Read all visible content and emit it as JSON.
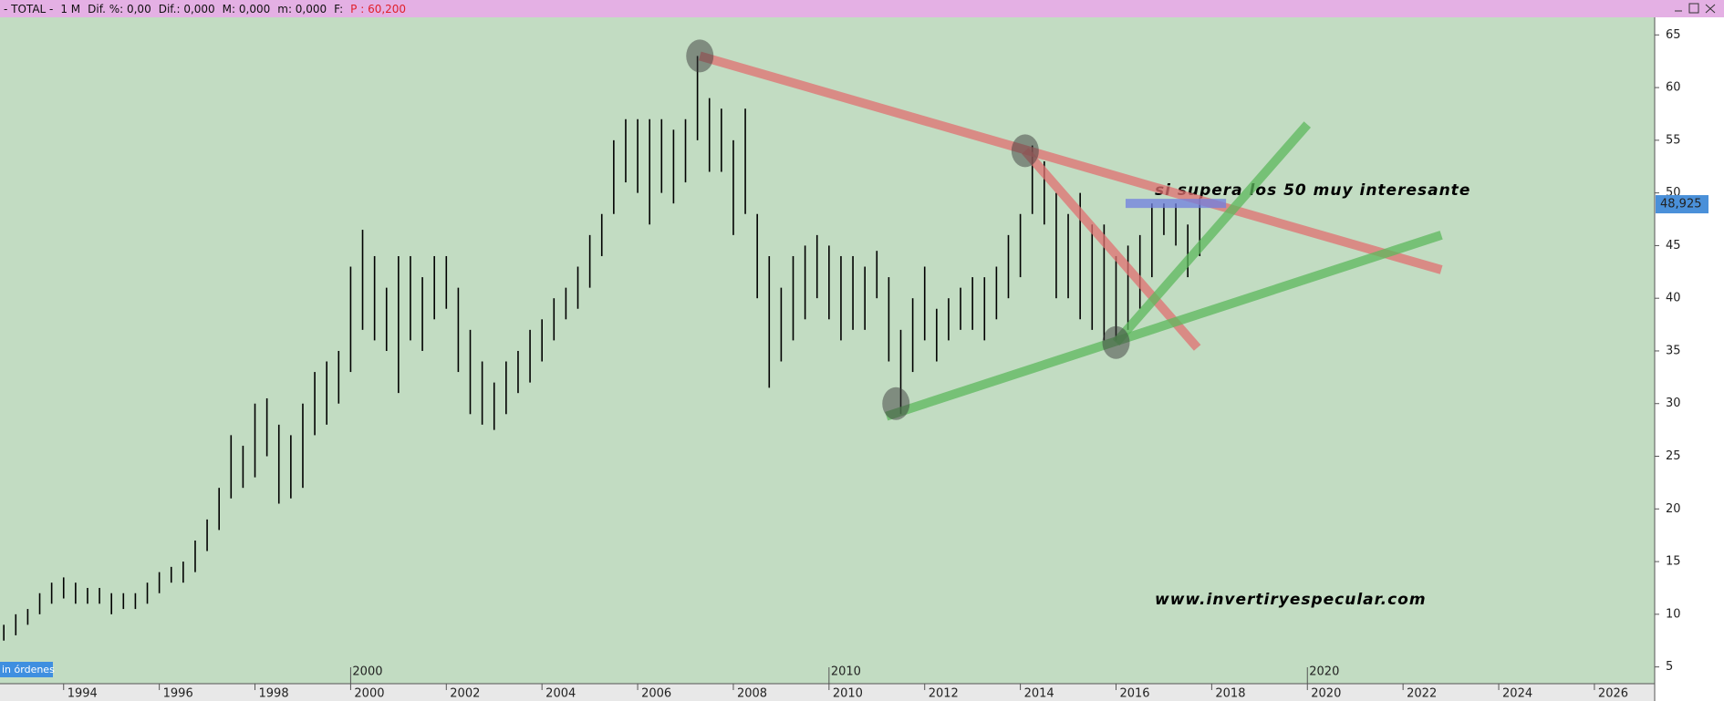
{
  "chart_data": {
    "type": "range-bar",
    "header": [
      "- TOTAL -",
      "1 M",
      "Dif. %: 0,00",
      "Dif.: 0,000",
      "M: 0,000",
      "m: 0,000",
      "F:"
    ],
    "price_field": "P : 60,200",
    "orders_label": "in órdenes",
    "annotation": "si supera los 50 muy interesante",
    "watermark": "www.invertiryespecular.com",
    "last_price": {
      "value": 48.925,
      "label": "48,925"
    },
    "bar_color": "#000000",
    "background": "#c2dcc2",
    "xlim": [
      1992.67,
      2027.26
    ],
    "ylim": [
      3.41,
      66.67
    ],
    "xticks": [
      1994,
      1996,
      1998,
      2000,
      2002,
      2004,
      2006,
      2008,
      2010,
      2012,
      2014,
      2016,
      2018,
      2020,
      2022,
      2024,
      2026
    ],
    "decade_ticks": [
      2000,
      2010,
      2020
    ],
    "yticks": [
      5,
      10,
      15,
      20,
      25,
      30,
      35,
      40,
      45,
      50,
      55,
      60,
      65
    ],
    "bars": {
      "x": [
        1992.75,
        1993,
        1993.25,
        1993.5,
        1993.75,
        1994,
        1994.25,
        1994.5,
        1994.75,
        1995,
        1995.25,
        1995.5,
        1995.75,
        1996,
        1996.25,
        1996.5,
        1996.75,
        1997,
        1997.25,
        1997.5,
        1997.75,
        1998,
        1998.25,
        1998.5,
        1998.75,
        1999,
        1999.25,
        1999.5,
        1999.75,
        2000,
        2000.25,
        2000.5,
        2000.75,
        2001,
        2001.25,
        2001.5,
        2001.75,
        2002,
        2002.25,
        2002.5,
        2002.75,
        2003,
        2003.25,
        2003.5,
        2003.75,
        2004,
        2004.25,
        2004.5,
        2004.75,
        2005,
        2005.25,
        2005.5,
        2005.75,
        2006,
        2006.25,
        2006.5,
        2006.75,
        2007,
        2007.25,
        2007.5,
        2007.75,
        2008,
        2008.25,
        2008.5,
        2008.75,
        2009,
        2009.25,
        2009.5,
        2009.75,
        2010,
        2010.25,
        2010.5,
        2010.75,
        2011,
        2011.25,
        2011.5,
        2011.75,
        2012,
        2012.25,
        2012.5,
        2012.75,
        2013,
        2013.25,
        2013.5,
        2013.75,
        2014,
        2014.25,
        2014.5,
        2014.75,
        2015,
        2015.25,
        2015.5,
        2015.75,
        2016,
        2016.25,
        2016.5,
        2016.75,
        2017,
        2017.25,
        2017.5,
        2017.75
      ],
      "high": [
        9,
        10,
        10.5,
        12,
        13,
        13.5,
        13,
        12.5,
        12.5,
        12,
        12,
        12,
        13,
        14,
        14.5,
        15,
        17,
        19,
        22,
        27,
        26,
        30,
        30.5,
        28,
        27,
        30,
        33,
        34,
        35,
        43,
        46.5,
        44,
        41,
        44,
        44,
        42,
        44,
        44,
        41,
        37,
        34,
        32,
        34,
        35,
        37,
        38,
        40,
        41,
        43,
        46,
        48,
        55,
        57,
        57,
        57,
        57,
        56,
        57,
        63,
        59,
        58,
        55,
        58,
        48,
        44,
        41,
        44,
        45,
        46,
        45,
        44,
        44,
        43,
        44.5,
        42,
        37,
        40,
        43,
        39,
        40,
        41,
        42,
        42,
        43,
        46,
        48,
        54.5,
        53,
        50,
        48,
        50,
        47,
        47,
        44,
        45,
        46,
        49,
        49,
        49,
        47,
        49.5
      ],
      "low": [
        7.5,
        8,
        9,
        10,
        11,
        11.5,
        11,
        11,
        11,
        10,
        10.5,
        10.5,
        11,
        12,
        13,
        13,
        14,
        16,
        18,
        21,
        22,
        23,
        25,
        20.5,
        21,
        22,
        27,
        28,
        30,
        33,
        37,
        36,
        35,
        31,
        36,
        35,
        38,
        39,
        33,
        29,
        28,
        27.5,
        29,
        31,
        32,
        34,
        36,
        38,
        39,
        41,
        44,
        48,
        51,
        50,
        47,
        50,
        49,
        51,
        55,
        52,
        52,
        46,
        48,
        40,
        31.5,
        34,
        36,
        38,
        40,
        38,
        36,
        37,
        37,
        40,
        34,
        29,
        33,
        36,
        34,
        36,
        37,
        37,
        36,
        38,
        40,
        42,
        48,
        47,
        40,
        40,
        38,
        37,
        36,
        36,
        37,
        39,
        42,
        46,
        45,
        42,
        44
      ]
    },
    "trendlines": [
      {
        "color": "#e07070",
        "x": [
          2007.3,
          2022.8
        ],
        "y": [
          63,
          42.7
        ]
      },
      {
        "color": "#e07070",
        "x": [
          2014.1,
          2017.7
        ],
        "y": [
          54,
          35.3
        ]
      },
      {
        "color": "#5cb85c",
        "x": [
          2011.2,
          2022.8
        ],
        "y": [
          28.8,
          46
        ]
      },
      {
        "color": "#5cb85c",
        "x": [
          2016,
          2020
        ],
        "y": [
          35.8,
          56.5
        ]
      },
      {
        "color": "#6f7fe0",
        "x": [
          2016.2,
          2018.3
        ],
        "y": [
          49,
          49
        ]
      }
    ],
    "circles": {
      "x": [
        2007.3,
        2014.1,
        2011.4,
        2016
      ],
      "y": [
        63,
        54,
        30,
        35.8
      ]
    }
  }
}
